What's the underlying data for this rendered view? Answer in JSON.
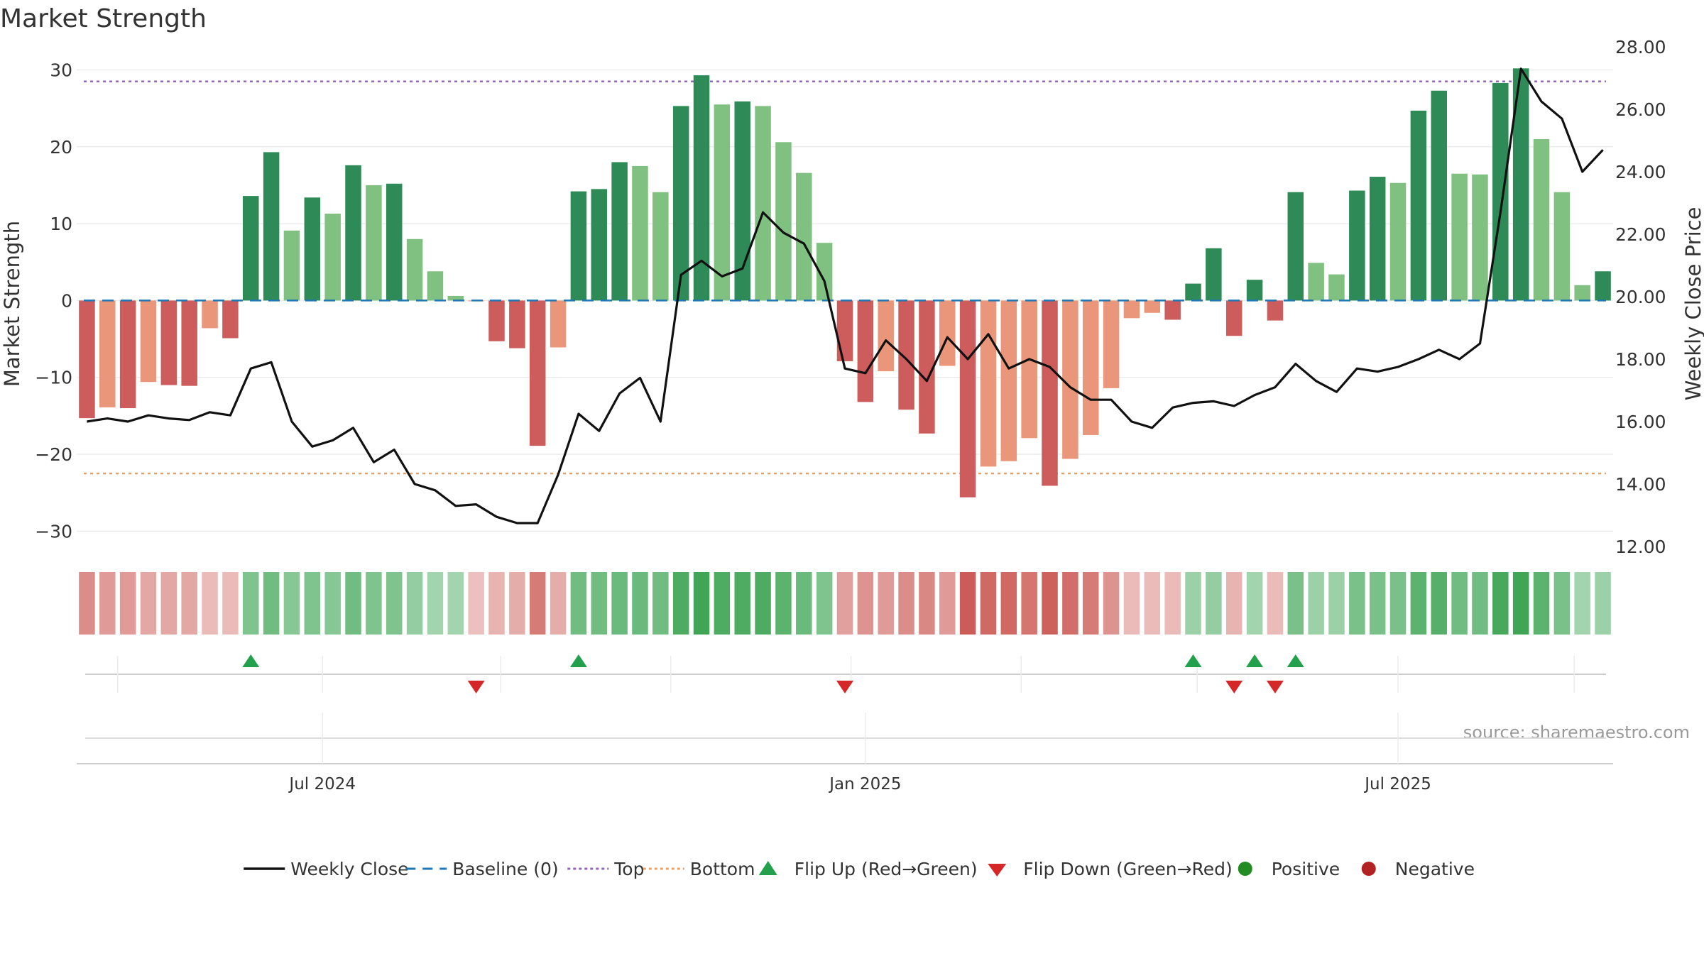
{
  "title": "Market Strength",
  "source_note": "source: sharemaestro.com",
  "colors": {
    "close_line": "#111111",
    "baseline": "#1f77b4",
    "top": "#9467bd",
    "bottom": "#e5a36b",
    "flip_up": "#22a04b",
    "flip_down": "#d62728",
    "positive_dark": "#2e8b57",
    "positive_light": "#80c080",
    "negative_dark": "#cd5c5c",
    "negative_light": "#e9967a",
    "positive_marker": "#228b22",
    "negative_marker": "#b22222",
    "heat_positive": "#3aa351",
    "heat_negative": "#c8504a"
  },
  "legend": [
    {
      "label": "Weekly Close",
      "kind": "line",
      "color": "#111111"
    },
    {
      "label": "Baseline (0)",
      "kind": "dash",
      "color": "#1f77b4"
    },
    {
      "label": "Top",
      "kind": "dot",
      "color": "#9467bd"
    },
    {
      "label": "Bottom",
      "kind": "dot",
      "color": "#e5a36b"
    },
    {
      "label": "Flip Up (Red→Green)",
      "kind": "tri-up",
      "color": "#22a04b"
    },
    {
      "label": "Flip Down (Green→Red)",
      "kind": "tri-down",
      "color": "#d62728"
    },
    {
      "label": "Positive",
      "kind": "circle",
      "color": "#228b22"
    },
    {
      "label": "Negative",
      "kind": "circle",
      "color": "#b22222"
    }
  ],
  "chart_data": {
    "type": "bar",
    "title": "Market Strength",
    "ylabel": "Market Strength",
    "y2label": "Weekly Close Price",
    "ylim": [
      -32,
      33
    ],
    "y2lim": [
      12,
      28
    ],
    "yticks": [
      -30,
      -20,
      -10,
      0,
      10,
      20,
      30
    ],
    "y2ticks": [
      "12.00",
      "14.00",
      "16.00",
      "18.00",
      "20.00",
      "22.00",
      "24.00",
      "26.00",
      "28.00"
    ],
    "xticks": [
      {
        "label": "Jul 2024",
        "week": 11.5
      },
      {
        "label": "Jan 2025",
        "week": 38
      },
      {
        "label": "Jul 2025",
        "week": 64
      }
    ],
    "top_line": 28.5,
    "bottom_line": -22.5,
    "baseline": 0,
    "grid": true,
    "legend_position": "bottom",
    "strength": [
      -15.3,
      -13.9,
      -14.0,
      -10.6,
      -11.0,
      -11.1,
      -3.6,
      -4.9,
      13.6,
      19.3,
      9.1,
      13.4,
      11.3,
      17.6,
      15.0,
      15.2,
      8.0,
      3.8,
      0.6,
      -0.1,
      -5.3,
      -6.2,
      -18.9,
      -6.1,
      14.2,
      14.5,
      18.0,
      17.5,
      14.1,
      25.3,
      29.3,
      25.5,
      25.9,
      25.3,
      20.6,
      16.6,
      7.5,
      -7.9,
      -13.2,
      -9.2,
      -14.2,
      -17.3,
      -8.5,
      -25.6,
      -21.6,
      -20.9,
      -17.9,
      -24.1,
      -20.6,
      -17.5,
      -11.4,
      -2.3,
      -1.6,
      -2.5,
      2.2,
      6.8,
      -4.6,
      2.7,
      -2.6,
      14.1,
      4.9,
      3.4,
      14.3,
      16.1,
      15.3,
      24.7,
      27.3,
      16.5,
      16.4,
      28.3,
      30.2,
      21.0,
      14.1,
      2.0,
      3.8
    ],
    "shade": [
      1,
      0,
      1,
      0,
      1,
      1,
      0,
      1,
      1,
      1,
      0,
      1,
      0,
      1,
      0,
      1,
      0,
      0,
      0,
      0,
      1,
      1,
      1,
      0,
      1,
      1,
      1,
      0,
      0,
      1,
      1,
      0,
      1,
      0,
      0,
      0,
      0,
      1,
      1,
      0,
      1,
      1,
      0,
      1,
      0,
      0,
      0,
      1,
      0,
      0,
      0,
      0,
      0,
      1,
      1,
      1,
      1,
      1,
      1,
      1,
      0,
      0,
      1,
      1,
      0,
      1,
      1,
      0,
      0,
      1,
      1,
      0,
      0,
      0,
      1
    ],
    "weekly_close": [
      16.0,
      16.1,
      16.0,
      16.2,
      16.1,
      16.05,
      16.3,
      16.2,
      17.7,
      17.9,
      16.0,
      15.2,
      15.4,
      15.8,
      14.7,
      15.1,
      14.0,
      13.8,
      13.3,
      13.35,
      12.95,
      12.75,
      12.75,
      14.3,
      16.25,
      15.7,
      16.9,
      17.4,
      16.0,
      20.7,
      21.15,
      20.65,
      20.9,
      22.7,
      22.05,
      21.7,
      20.5,
      17.7,
      17.55,
      18.6,
      18.0,
      17.3,
      18.7,
      18.0,
      18.8,
      17.7,
      18.0,
      17.75,
      17.1,
      16.7,
      16.7,
      16.0,
      15.8,
      16.45,
      16.6,
      16.65,
      16.5,
      16.85,
      17.1,
      17.85,
      17.3,
      16.95,
      17.7,
      17.6,
      17.75,
      18.0,
      18.3,
      18.0,
      18.5,
      22.7,
      27.3,
      26.25,
      25.7,
      24.0,
      24.7
    ],
    "heat_level": [
      -0.55,
      -0.45,
      -0.45,
      -0.35,
      -0.35,
      -0.35,
      -0.2,
      -0.2,
      0.55,
      0.65,
      0.5,
      0.55,
      0.5,
      0.65,
      0.55,
      0.55,
      0.4,
      0.3,
      0.3,
      -0.15,
      -0.25,
      -0.3,
      -0.7,
      -0.3,
      0.65,
      0.65,
      0.7,
      0.7,
      0.65,
      0.9,
      1.0,
      0.9,
      0.9,
      0.9,
      0.8,
      0.7,
      0.55,
      -0.4,
      -0.5,
      -0.45,
      -0.55,
      -0.6,
      -0.45,
      -0.95,
      -0.85,
      -0.85,
      -0.75,
      -0.9,
      -0.8,
      -0.7,
      -0.5,
      -0.2,
      -0.2,
      -0.2,
      0.35,
      0.4,
      -0.25,
      0.3,
      -0.2,
      0.6,
      0.35,
      0.35,
      0.6,
      0.6,
      0.6,
      0.8,
      0.85,
      0.65,
      0.65,
      0.95,
      1.0,
      0.8,
      0.6,
      0.3,
      0.35
    ],
    "flip_up_weeks": [
      8,
      24,
      54,
      57,
      59
    ],
    "flip_down_weeks": [
      19,
      37,
      56,
      58
    ]
  }
}
